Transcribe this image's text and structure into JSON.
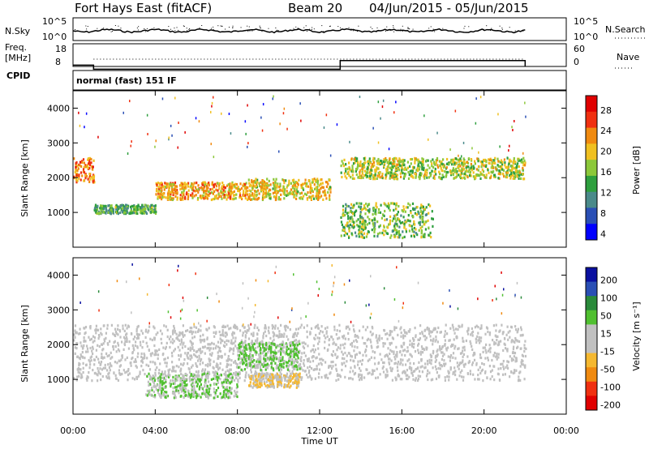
{
  "header": {
    "title": "Fort Hays East (fitACF)",
    "beam": "Beam 20",
    "date_range": "04/Jun/2015 - 05/Jun/2015"
  },
  "noise_panel": {
    "left_label": "N.Sky",
    "right_label": "N.Search",
    "left_ticks": [
      "10^5",
      "10^0"
    ],
    "right_ticks": [
      "10^5",
      "10^0"
    ]
  },
  "freq_panel": {
    "label_line1": "Freq.",
    "label_line2": "[MHz]",
    "left_ticks": [
      "18",
      "8"
    ],
    "right_ticks": [
      "60",
      "0"
    ],
    "right_label": "Nave"
  },
  "cpid": {
    "label": "CPID",
    "text": "normal (fast) 151 IF"
  },
  "power_panel": {
    "ylabel": "Slant Range [km]",
    "cbar_label": "Power [dB]",
    "cbar_ticks": [
      "28",
      "24",
      "20",
      "16",
      "12",
      "8",
      "4"
    ]
  },
  "velocity_panel": {
    "ylabel": "Slant Range [km]",
    "cbar_label": "Velocity [m s⁻¹]",
    "cbar_ticks": [
      "200",
      "100",
      "50",
      "15",
      "-15",
      "-50",
      "-100",
      "-200"
    ]
  },
  "x_axis": {
    "label": "Time UT",
    "ticks": [
      "00:00",
      "04:00",
      "08:00",
      "12:00",
      "16:00",
      "20:00",
      "00:00"
    ]
  },
  "colors": {
    "power_scale": [
      "#0000ff",
      "#2a4fb5",
      "#4a8a8a",
      "#2e9f3e",
      "#8cc83a",
      "#f0c020",
      "#f08a10",
      "#f03010",
      "#e00000"
    ],
    "velocity_scale": [
      "#e00000",
      "#f03010",
      "#f08a10",
      "#f5b830",
      "#c0c0c0",
      "#c0c0c0",
      "#50c030",
      "#2a8a3a",
      "#2a4fb5",
      "#0a10a0"
    ]
  },
  "chart_data": [
    {
      "type": "heatmap",
      "title": "Power [dB]",
      "xlabel": "Time UT",
      "ylabel": "Slant Range [km]",
      "xlim": [
        "00:00",
        "24:00"
      ],
      "ylim": [
        0,
        4500
      ],
      "y_ticks": [
        1000,
        2000,
        3000,
        4000
      ],
      "colorbar": {
        "label": "Power [dB]",
        "range": [
          0,
          30
        ]
      },
      "bands": [
        {
          "t": [
            0.0,
            1.0
          ],
          "range": [
            1900,
            2600
          ],
          "power": 22
        },
        {
          "t": [
            1.0,
            4.0
          ],
          "range": [
            1000,
            1250
          ],
          "power": 12
        },
        {
          "t": [
            4.0,
            8.5
          ],
          "range": [
            1400,
            1900
          ],
          "power": 20
        },
        {
          "t": [
            8.5,
            12.5
          ],
          "range": [
            1400,
            2000
          ],
          "power": 18
        },
        {
          "t": [
            13.0,
            17.5
          ],
          "range": [
            300,
            1300
          ],
          "power": 14
        },
        {
          "t": [
            13.0,
            22.0
          ],
          "range": [
            2000,
            2600
          ],
          "power": 16
        }
      ]
    },
    {
      "type": "heatmap",
      "title": "Velocity [m s⁻¹]",
      "xlabel": "Time UT",
      "ylabel": "Slant Range [km]",
      "xlim": [
        "00:00",
        "24:00"
      ],
      "ylim": [
        0,
        4500
      ],
      "y_ticks": [
        1000,
        2000,
        3000,
        4000
      ],
      "colorbar": {
        "label": "Velocity [m s⁻¹]",
        "range": [
          -200,
          200
        ]
      },
      "bands": [
        {
          "t": [
            0.0,
            22.0
          ],
          "range": [
            1000,
            2600
          ],
          "velocity": 0
        },
        {
          "t": [
            3.5,
            8.0
          ],
          "range": [
            500,
            1200
          ],
          "velocity": 40
        },
        {
          "t": [
            8.0,
            11.0
          ],
          "range": [
            1300,
            2100
          ],
          "velocity": 50
        },
        {
          "t": [
            8.5,
            11.0
          ],
          "range": [
            800,
            1200
          ],
          "velocity": -40
        }
      ]
    }
  ],
  "freq_series": {
    "t": [
      0.0,
      1.0,
      1.0,
      13.0,
      13.0,
      22.0
    ],
    "mhz": [
      10,
      10,
      8.2,
      8.2,
      12,
      12
    ]
  }
}
